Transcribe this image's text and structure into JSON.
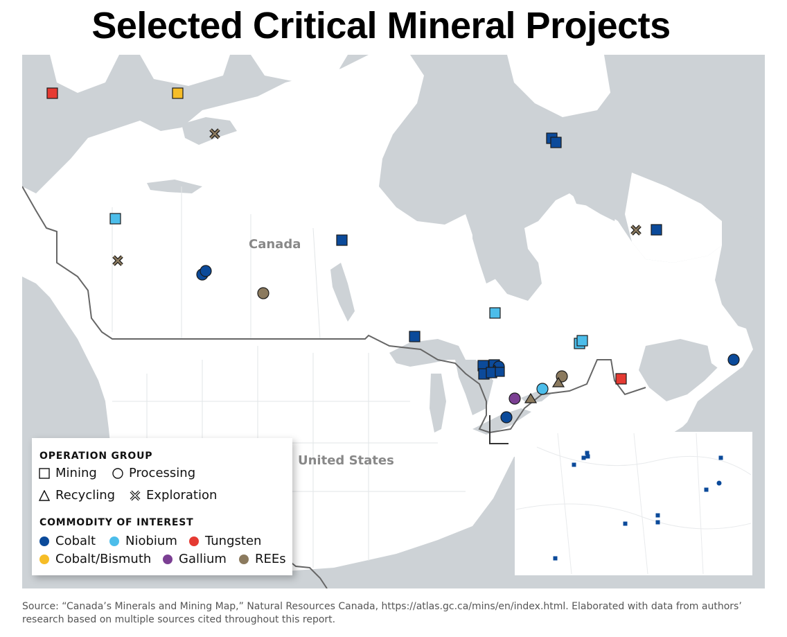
{
  "title": "Selected Critical Mineral Projects",
  "map_labels": {
    "canada": "Canada",
    "united_states": "United States"
  },
  "legend": {
    "operation_heading": "OPERATION GROUP",
    "operations": [
      {
        "label": "Mining",
        "shape": "square"
      },
      {
        "label": "Processing",
        "shape": "circle"
      },
      {
        "label": "Recycling",
        "shape": "triangle"
      },
      {
        "label": "Exploration",
        "shape": "cross"
      }
    ],
    "commodity_heading": "COMMODITY OF INTEREST",
    "commodities": [
      {
        "label": "Cobalt",
        "color": "#0b4a9a"
      },
      {
        "label": "Niobium",
        "color": "#4cbdea"
      },
      {
        "label": "Tungsten",
        "color": "#e53a32"
      },
      {
        "label": "Cobalt/Bismuth",
        "color": "#f6bd27"
      },
      {
        "label": "Gallium",
        "color": "#7b3f93"
      },
      {
        "label": "REEs",
        "color": "#8b7a5e"
      }
    ]
  },
  "colors": {
    "water": "#cdd2d6",
    "land": "#ffffff",
    "border": "#666666"
  },
  "source": "Source: “Canada’s Minerals and Mining Map,” Natural Resources Canada, https://atlas.gc.ca/mins/en/index.html. Elaborated with data from authors’ research based on multiple sources cited throughout this report."
}
